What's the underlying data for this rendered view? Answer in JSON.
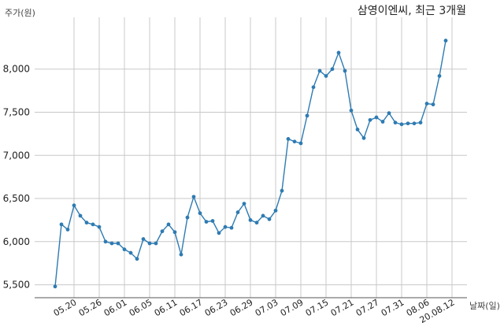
{
  "chart_data": {
    "type": "line",
    "title": "삼영이엔씨, 최근 3개월",
    "ylabel": "주가(원)",
    "xlabel": "날짜(일)",
    "ylim": [
      5350,
      8600
    ],
    "yticks": [
      5500,
      6000,
      6500,
      7000,
      7500,
      8000
    ],
    "ytick_labels": [
      "5,500",
      "6,000",
      "6,500",
      "7,000",
      "7,500",
      "8,000"
    ],
    "grid": true,
    "colors": {
      "line": "#2e7bb2",
      "marker": "#2e7bb2",
      "grid": "#c8c8c8"
    },
    "xtick_labels": [
      {
        "index": 3,
        "label": "05.20"
      },
      {
        "index": 7,
        "label": "05.26"
      },
      {
        "index": 11,
        "label": "06.01"
      },
      {
        "index": 15,
        "label": "06.05"
      },
      {
        "index": 19,
        "label": "06.11"
      },
      {
        "index": 23,
        "label": "06.17"
      },
      {
        "index": 27,
        "label": "06.23"
      },
      {
        "index": 31,
        "label": "06.29"
      },
      {
        "index": 35,
        "label": "07.03"
      },
      {
        "index": 39,
        "label": "07.09"
      },
      {
        "index": 43,
        "label": "07.15"
      },
      {
        "index": 47,
        "label": "07.21"
      },
      {
        "index": 51,
        "label": "07.27"
      },
      {
        "index": 55,
        "label": "07.31"
      },
      {
        "index": 59,
        "label": "08.06"
      },
      {
        "index": 63,
        "label": "20.08.12"
      }
    ],
    "series": [
      {
        "values": [
          5480,
          6200,
          6140,
          6420,
          6300,
          6220,
          6200,
          6170,
          6000,
          5980,
          5980,
          5910,
          5870,
          5800,
          6030,
          5980,
          5980,
          6120,
          6200,
          6110,
          5850,
          6280,
          6520,
          6330,
          6230,
          6240,
          6100,
          6170,
          6160,
          6340,
          6440,
          6250,
          6220,
          6300,
          6260,
          6360,
          6590,
          7190,
          7160,
          7140,
          7460,
          7790,
          7980,
          7920,
          8000,
          8190,
          7980,
          7520,
          7300,
          7200,
          7410,
          7440,
          7390,
          7490,
          7380,
          7360,
          7370,
          7370,
          7380,
          7600,
          7590,
          7920,
          8330
        ]
      }
    ]
  }
}
